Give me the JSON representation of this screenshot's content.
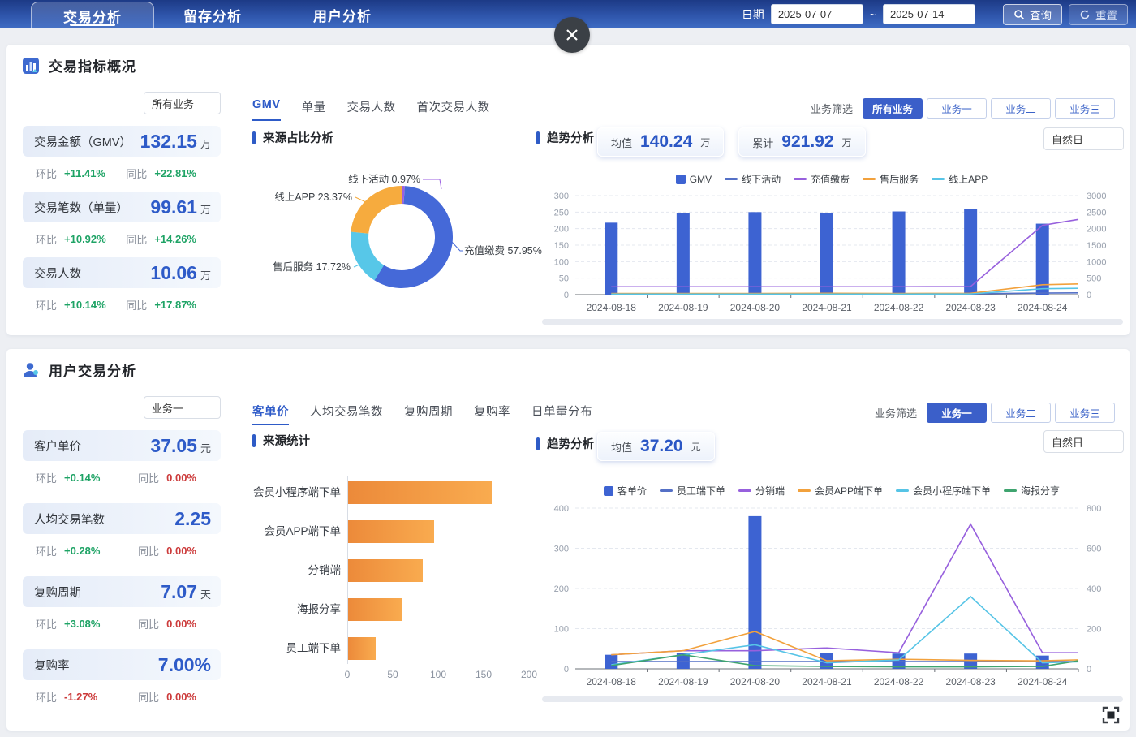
{
  "header": {
    "tabs": [
      "交易分析",
      "留存分析",
      "用户分析"
    ],
    "date_label": "日期",
    "date_from": "2025-07-07",
    "date_separator": "~",
    "date_to": "2025-07-14",
    "query_button": "查询",
    "reset_button": "重置"
  },
  "section1": {
    "title": "交易指标概况",
    "business_select": "所有业务",
    "mom_label": "环比",
    "yoy_label": "同比",
    "kpis": [
      {
        "label": "交易金额（GMV）",
        "value": "132.15",
        "unit": "万",
        "mom": "+11.41%",
        "mom_color": "#1ea365",
        "yoy": "+22.81%",
        "yoy_color": "#1ea365"
      },
      {
        "label": "交易笔数（单量）",
        "value": "99.61",
        "unit": "万",
        "mom": "+10.92%",
        "mom_color": "#1ea365",
        "yoy": "+14.26%",
        "yoy_color": "#1ea365"
      },
      {
        "label": "交易人数",
        "value": "10.06",
        "unit": "万",
        "mom": "+10.14%",
        "mom_color": "#1ea365",
        "yoy": "+17.87%",
        "yoy_color": "#1ea365"
      }
    ],
    "tabs": [
      "GMV",
      "单量",
      "交易人数",
      "首次交易人数"
    ],
    "active_tab": 0,
    "filter_label": "业务筛选",
    "filters": [
      "所有业务",
      "业务一",
      "业务二",
      "业务三"
    ],
    "active_filter": 0,
    "pie_title": "来源占比分析",
    "trend_title": "趋势分析",
    "stats": [
      {
        "label": "均值",
        "value": "140.24",
        "unit": "万"
      },
      {
        "label": "累计",
        "value": "921.92",
        "unit": "万"
      }
    ],
    "period_select": "自然日"
  },
  "section2": {
    "title": "用户交易分析",
    "business_select": "业务一",
    "mom_label": "环比",
    "yoy_label": "同比",
    "kpis": [
      {
        "label": "客户单价",
        "value": "37.05",
        "unit": "元",
        "mom": "+0.14%",
        "mom_color": "#1ea365",
        "yoy": "0.00%",
        "yoy_color": "#cc3b3b"
      },
      {
        "label": "人均交易笔数",
        "value": "2.25",
        "unit": "",
        "mom": "+0.28%",
        "mom_color": "#1ea365",
        "yoy": "0.00%",
        "yoy_color": "#cc3b3b"
      },
      {
        "label": "复购周期",
        "value": "7.07",
        "unit": "天",
        "mom": "+3.08%",
        "mom_color": "#1ea365",
        "yoy": "0.00%",
        "yoy_color": "#cc3b3b"
      },
      {
        "label": "复购率",
        "value": "7.00%",
        "unit": "",
        "mom": "-1.27%",
        "mom_color": "#cc3b3b",
        "yoy": "0.00%",
        "yoy_color": "#cc3b3b"
      }
    ],
    "tabs": [
      "客单价",
      "人均交易笔数",
      "复购周期",
      "复购率",
      "日单量分布"
    ],
    "active_tab": 0,
    "filter_label": "业务筛选",
    "filters": [
      "业务一",
      "业务二",
      "业务三"
    ],
    "active_filter": 0,
    "hbar_title": "来源统计",
    "trend_title": "趋势分析",
    "stats": [
      {
        "label": "均值",
        "value": "37.20",
        "unit": "元"
      }
    ],
    "period_select": "自然日"
  },
  "chart_data": [
    {
      "type": "pie",
      "title": "来源占比分析",
      "slices": [
        {
          "label": "线下活动",
          "value": 0.97,
          "pct": "0.97%",
          "color": "#9b5fe0"
        },
        {
          "label": "充值缴费",
          "value": 57.95,
          "pct": "57.95%",
          "color": "#4569d8"
        },
        {
          "label": "售后服务",
          "value": 17.72,
          "pct": "17.72%",
          "color": "#57c7e8"
        },
        {
          "label": "线上APP",
          "value": 23.37,
          "pct": "23.37%",
          "color": "#f6ab3e"
        }
      ]
    },
    {
      "type": "bar",
      "title": "趋势分析 (GMV)",
      "categories": [
        "2024-08-18",
        "2024-08-19",
        "2024-08-20",
        "2024-08-21",
        "2024-08-22",
        "2024-08-23",
        "2024-08-24"
      ],
      "bar_series": {
        "name": "GMV",
        "color": "#3d63d2",
        "values": [
          218,
          248,
          250,
          248,
          252,
          260,
          215
        ]
      },
      "line_series": [
        {
          "name": "线下活动",
          "color": "#5470c6",
          "values": [
            22,
            22,
            22,
            22,
            22,
            22,
            40
          ],
          "edge": 45
        },
        {
          "name": "充值缴费",
          "color": "#9760dd",
          "values": [
            200,
            200,
            200,
            200,
            200,
            205,
            1750
          ],
          "edge": 1900
        },
        {
          "name": "售后服务",
          "color": "#f2a13c",
          "values": [
            30,
            30,
            30,
            35,
            30,
            35,
            250
          ],
          "edge": 270
        },
        {
          "name": "线上APP",
          "color": "#56c4e6",
          "values": [
            15,
            15,
            15,
            15,
            15,
            18,
            150
          ],
          "edge": 160
        }
      ],
      "y_left": {
        "min": 0,
        "max": 300,
        "step": 50
      },
      "y_right": {
        "min": 0,
        "max": 2500,
        "step": 500
      }
    },
    {
      "type": "bar",
      "title": "来源统计 (客单价)",
      "categories": [
        "会员小程序端下单",
        "会员APP端下单",
        "分销端",
        "海报分享",
        "员工端下单"
      ],
      "values": [
        158,
        95,
        82,
        59,
        30
      ],
      "xticks": [
        0,
        50,
        100,
        150,
        200
      ],
      "xlim": [
        0,
        200
      ]
    },
    {
      "type": "bar",
      "title": "趋势分析 (客单价)",
      "categories": [
        "2024-08-18",
        "2024-08-19",
        "2024-08-20",
        "2024-08-21",
        "2024-08-22",
        "2024-08-23",
        "2024-08-24"
      ],
      "bar_series": {
        "name": "客单价",
        "color": "#3d63d2",
        "values": [
          35,
          40,
          380,
          40,
          38,
          38,
          33
        ]
      },
      "line_series": [
        {
          "name": "员工端下单",
          "color": "#5470c6",
          "values": [
            36,
            36,
            36,
            36,
            36,
            36,
            36
          ],
          "edge": 36
        },
        {
          "name": "分销端",
          "color": "#9760dd",
          "values": [
            70,
            90,
            90,
            104,
            80,
            720,
            80
          ],
          "edge": 80
        },
        {
          "name": "会员APP端下单",
          "color": "#f2a13c",
          "values": [
            70,
            90,
            186,
            40,
            48,
            42,
            40
          ],
          "edge": 45
        },
        {
          "name": "会员小程序端下单",
          "color": "#56c4e6",
          "values": [
            20,
            70,
            120,
            30,
            44,
            360,
            30
          ],
          "edge": 35
        },
        {
          "name": "海报分享",
          "color": "#3fa46f",
          "values": [
            16,
            70,
            16,
            12,
            10,
            10,
            12
          ],
          "edge": 40
        }
      ],
      "y_left": {
        "min": 0,
        "max": 400,
        "step": 100
      },
      "y_right": {
        "min": 0,
        "max": 800,
        "step": 200
      }
    }
  ]
}
